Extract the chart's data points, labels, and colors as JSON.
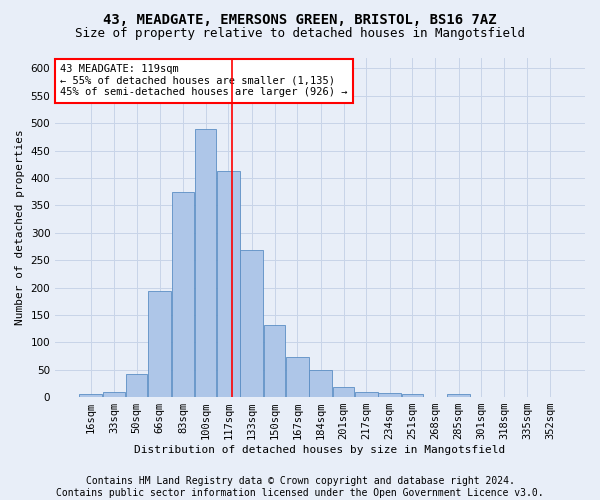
{
  "title1": "43, MEADGATE, EMERSONS GREEN, BRISTOL, BS16 7AZ",
  "title2": "Size of property relative to detached houses in Mangotsfield",
  "xlabel": "Distribution of detached houses by size in Mangotsfield",
  "ylabel": "Number of detached properties",
  "footer1": "Contains HM Land Registry data © Crown copyright and database right 2024.",
  "footer2": "Contains public sector information licensed under the Open Government Licence v3.0.",
  "annotation_line1": "43 MEADGATE: 119sqm",
  "annotation_line2": "← 55% of detached houses are smaller (1,135)",
  "annotation_line3": "45% of semi-detached houses are larger (926) →",
  "bar_categories": [
    "16sqm",
    "33sqm",
    "50sqm",
    "66sqm",
    "83sqm",
    "100sqm",
    "117sqm",
    "133sqm",
    "150sqm",
    "167sqm",
    "184sqm",
    "201sqm",
    "217sqm",
    "234sqm",
    "251sqm",
    "268sqm",
    "285sqm",
    "301sqm",
    "318sqm",
    "335sqm",
    "352sqm"
  ],
  "bar_values": [
    5,
    10,
    42,
    193,
    375,
    490,
    413,
    268,
    131,
    74,
    50,
    18,
    10,
    7,
    5,
    0,
    6,
    0,
    1,
    0,
    1
  ],
  "bin_edges_sqm": [
    8,
    25,
    42,
    58,
    75,
    92,
    108,
    125,
    142,
    158,
    175,
    192,
    208,
    225,
    242,
    258,
    275,
    292,
    308,
    325,
    342,
    358
  ],
  "bar_color": "#aec6e8",
  "bar_edge_color": "#5b8ec4",
  "vline_x": 119,
  "vline_color": "red",
  "ylim": [
    0,
    620
  ],
  "yticks": [
    0,
    50,
    100,
    150,
    200,
    250,
    300,
    350,
    400,
    450,
    500,
    550,
    600
  ],
  "grid_color": "#c8d4e8",
  "background_color": "#e8eef8",
  "annotation_box_color": "white",
  "annotation_box_edge": "red",
  "title1_fontsize": 10,
  "title2_fontsize": 9,
  "axis_label_fontsize": 8,
  "footer_fontsize": 7,
  "tick_fontsize": 7.5,
  "annotation_fontsize": 7.5
}
